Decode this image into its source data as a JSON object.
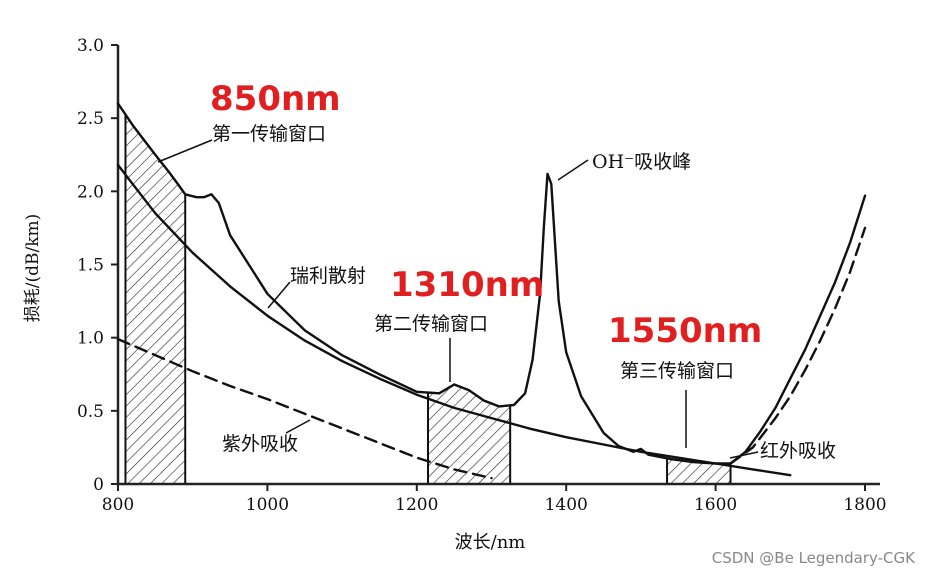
{
  "chart_data": {
    "type": "line",
    "xlabel": "波长/nm",
    "ylabel": "损耗/(dB/km)",
    "xlim": [
      800,
      1800
    ],
    "ylim": [
      0,
      3.0
    ],
    "x_ticks": [
      "800",
      "1000",
      "1200",
      "1400",
      "1600",
      "1800"
    ],
    "y_ticks": [
      "0",
      "0.5",
      "1.0",
      "1.5",
      "2.0",
      "2.5",
      "3.0"
    ],
    "series": [
      {
        "style": "solid",
        "label": "",
        "x": [
          800,
          820,
          850,
          870,
          880,
          890,
          905,
          915,
          925,
          935,
          950,
          1000,
          1050,
          1100,
          1150,
          1200,
          1230,
          1250,
          1270,
          1290,
          1310,
          1330,
          1345,
          1355,
          1365,
          1370,
          1375,
          1380,
          1385,
          1390,
          1400,
          1420,
          1450,
          1470,
          1490,
          1500,
          1510,
          1540,
          1570,
          1600,
          1620,
          1640,
          1660,
          1680,
          1700,
          1720,
          1740,
          1760,
          1780,
          1800
        ],
        "y": [
          2.6,
          2.45,
          2.25,
          2.12,
          2.05,
          1.98,
          1.96,
          1.96,
          1.98,
          1.92,
          1.7,
          1.3,
          1.05,
          0.88,
          0.75,
          0.63,
          0.62,
          0.68,
          0.64,
          0.57,
          0.53,
          0.54,
          0.62,
          0.85,
          1.3,
          1.75,
          2.12,
          2.05,
          1.65,
          1.25,
          0.9,
          0.6,
          0.35,
          0.26,
          0.22,
          0.24,
          0.2,
          0.17,
          0.15,
          0.14,
          0.14,
          0.22,
          0.36,
          0.52,
          0.72,
          0.92,
          1.15,
          1.38,
          1.65,
          1.97
        ]
      },
      {
        "style": "solid",
        "label": "瑞利散射",
        "x": [
          800,
          850,
          900,
          950,
          1000,
          1050,
          1100,
          1150,
          1200,
          1250,
          1300,
          1350,
          1400,
          1450,
          1500,
          1550,
          1600,
          1650,
          1700
        ],
        "y": [
          2.18,
          1.85,
          1.58,
          1.35,
          1.15,
          0.98,
          0.84,
          0.72,
          0.61,
          0.52,
          0.45,
          0.38,
          0.32,
          0.27,
          0.22,
          0.18,
          0.14,
          0.1,
          0.06
        ]
      },
      {
        "style": "dashed",
        "label": "紫外吸收",
        "x": [
          800,
          850,
          900,
          950,
          1000,
          1050,
          1100,
          1150,
          1200,
          1250,
          1300
        ],
        "y": [
          0.99,
          0.88,
          0.77,
          0.67,
          0.58,
          0.48,
          0.38,
          0.28,
          0.18,
          0.1,
          0.04
        ]
      },
      {
        "style": "dashed",
        "label": "红外吸收",
        "x": [
          1620,
          1650,
          1680,
          1700,
          1720,
          1740,
          1760,
          1780,
          1800
        ],
        "y": [
          0.14,
          0.25,
          0.45,
          0.6,
          0.78,
          0.98,
          1.2,
          1.45,
          1.75
        ]
      }
    ],
    "windows": [
      {
        "label": "第一传输窗口",
        "wavelength": "850nm",
        "x_range": [
          810,
          890
        ]
      },
      {
        "label": "第二传输窗口",
        "wavelength": "1310nm",
        "x_range": [
          1215,
          1325
        ]
      },
      {
        "label": "第三传输窗口",
        "wavelength": "1550nm",
        "x_range": [
          1535,
          1620
        ]
      }
    ],
    "annotations": [
      {
        "text": "OH⁻吸收峰"
      }
    ],
    "grid": false
  },
  "watermark": "CSDN @Be Legendary-CGK"
}
